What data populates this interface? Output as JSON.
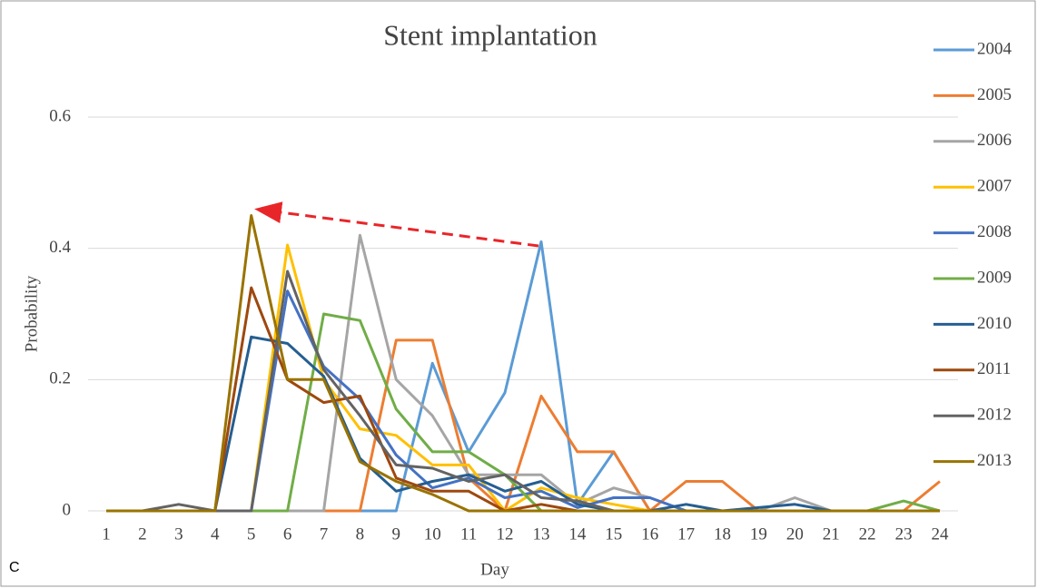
{
  "chart_data": {
    "type": "line",
    "title": "Stent implantation",
    "panel_label": "C",
    "x_label": "Day",
    "y_label": "Probability",
    "categories": [
      "1",
      "2",
      "3",
      "4",
      "5",
      "6",
      "7",
      "8",
      "9",
      "10",
      "11",
      "12",
      "13",
      "14",
      "15",
      "16",
      "17",
      "18",
      "19",
      "20",
      "21",
      "22",
      "23",
      "24"
    ],
    "ylim": [
      0,
      0.6
    ],
    "yticks": [
      0,
      0.2,
      0.4,
      0.6
    ],
    "grid": true,
    "legend": "right",
    "series": [
      {
        "name": "2004",
        "color": "#5b9bd5",
        "values": [
          0,
          0,
          0,
          0,
          0,
          0,
          0,
          0,
          0,
          0.225,
          0.09,
          0.18,
          0.41,
          0.01,
          0.09,
          0,
          0,
          0,
          0,
          0,
          0,
          0,
          0,
          0
        ]
      },
      {
        "name": "2005",
        "color": "#ed7d31",
        "values": [
          0,
          0,
          0,
          0,
          0,
          0,
          0,
          0,
          0.26,
          0.26,
          0.05,
          0,
          0.175,
          0.09,
          0.09,
          0,
          0.045,
          0.045,
          0,
          0,
          0,
          0,
          0,
          0.045
        ]
      },
      {
        "name": "2006",
        "color": "#a5a5a5",
        "values": [
          0,
          0,
          0,
          0,
          0,
          0,
          0,
          0.42,
          0.2,
          0.145,
          0.055,
          0.055,
          0.055,
          0.01,
          0.035,
          0.02,
          0,
          0,
          0,
          0.02,
          0,
          0,
          0,
          0
        ]
      },
      {
        "name": "2007",
        "color": "#ffc000",
        "values": [
          0,
          0,
          0,
          0,
          0,
          0.405,
          0.2,
          0.125,
          0.115,
          0.07,
          0.07,
          0,
          0.035,
          0.02,
          0.01,
          0,
          0,
          0,
          0,
          0,
          0,
          0,
          0,
          0
        ]
      },
      {
        "name": "2008",
        "color": "#4472c4",
        "values": [
          0,
          0,
          0,
          0,
          0,
          0.335,
          0.22,
          0.17,
          0.085,
          0.035,
          0.05,
          0.02,
          0.03,
          0.005,
          0.02,
          0.02,
          0,
          0,
          0,
          0,
          0,
          0,
          0,
          0
        ]
      },
      {
        "name": "2009",
        "color": "#70ad47",
        "values": [
          0,
          0,
          0,
          0,
          0,
          0,
          0.3,
          0.29,
          0.155,
          0.09,
          0.09,
          0.055,
          0,
          0,
          0,
          0,
          0,
          0,
          0,
          0,
          0,
          0,
          0.015,
          0
        ]
      },
      {
        "name": "2010",
        "color": "#255e91",
        "values": [
          0,
          0,
          0,
          0,
          0.265,
          0.255,
          0.205,
          0.08,
          0.03,
          0.045,
          0.055,
          0.03,
          0.045,
          0.01,
          0,
          0,
          0.01,
          0,
          0.005,
          0.01,
          0,
          0,
          0,
          0
        ]
      },
      {
        "name": "2011",
        "color": "#9e480e",
        "values": [
          0,
          0,
          0,
          0,
          0.34,
          0.2,
          0.165,
          0.175,
          0.05,
          0.03,
          0.03,
          0,
          0.01,
          0,
          0,
          0,
          0,
          0,
          0,
          0,
          0,
          0,
          0,
          0
        ]
      },
      {
        "name": "2012",
        "color": "#636363",
        "values": [
          0,
          0,
          0.01,
          0,
          0,
          0.365,
          0.215,
          0.145,
          0.07,
          0.065,
          0.045,
          0.055,
          0.02,
          0.015,
          0,
          0,
          0,
          0,
          0,
          0,
          0,
          0,
          0,
          0
        ]
      },
      {
        "name": "2013",
        "color": "#997300",
        "values": [
          0,
          0,
          0,
          0,
          0.45,
          0.2,
          0.2,
          0.075,
          0.045,
          0.025,
          0,
          0,
          0,
          0,
          0,
          0,
          0,
          0,
          0,
          0,
          0,
          0,
          0,
          0
        ]
      }
    ]
  }
}
